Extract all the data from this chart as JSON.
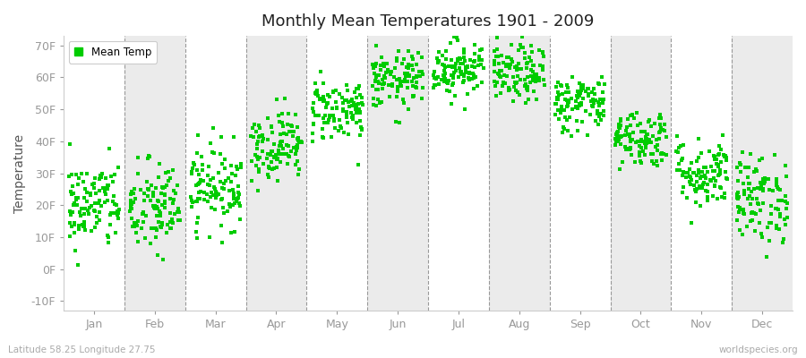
{
  "title": "Monthly Mean Temperatures 1901 - 2009",
  "ylabel": "Temperature",
  "xlabel_labels": [
    "Jan",
    "Feb",
    "Mar",
    "Apr",
    "May",
    "Jun",
    "Jul",
    "Aug",
    "Sep",
    "Oct",
    "Nov",
    "Dec"
  ],
  "ytick_labels": [
    "-10F",
    "0F",
    "10F",
    "20F",
    "30F",
    "40F",
    "50F",
    "60F",
    "70F"
  ],
  "ytick_values": [
    -10,
    0,
    10,
    20,
    30,
    40,
    50,
    60,
    70
  ],
  "ylim": [
    -13,
    73
  ],
  "dot_color": "#00CC00",
  "legend_label": "Mean Temp",
  "subtitle_left": "Latitude 58.25 Longitude 27.75",
  "subtitle_right": "worldspecies.org",
  "background_color": "#ffffff",
  "band_color_white": "#ffffff",
  "band_color_gray": "#ebebeb",
  "monthly_means_F": [
    20.0,
    19.0,
    26.0,
    39.0,
    50.0,
    59.0,
    63.0,
    61.0,
    52.0,
    41.0,
    30.0,
    22.0
  ],
  "monthly_stds_F": [
    7.0,
    7.5,
    6.5,
    5.5,
    5.0,
    4.5,
    4.5,
    4.5,
    4.5,
    4.5,
    5.5,
    7.0
  ],
  "n_years": 109,
  "seed": 42,
  "figsize": [
    9.0,
    4.0
  ],
  "dpi": 100
}
